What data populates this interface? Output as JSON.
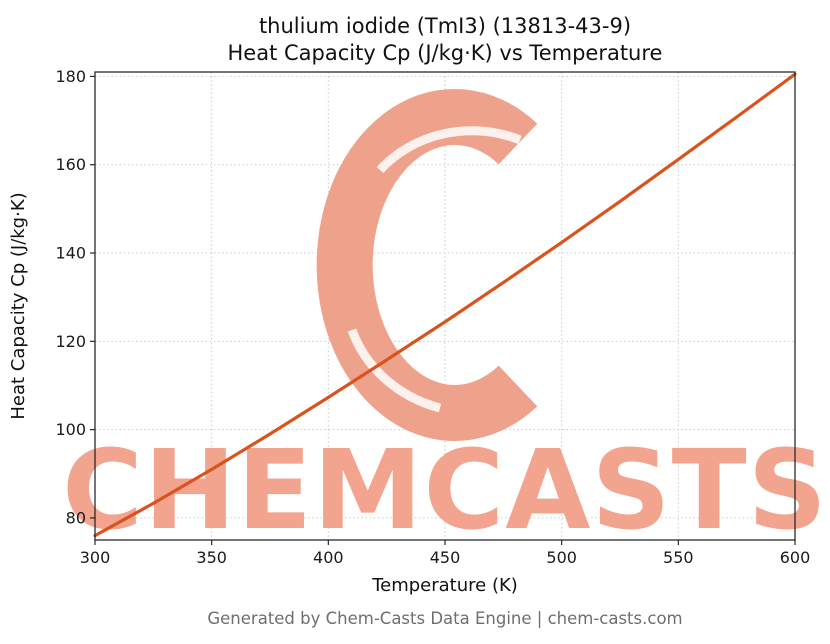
{
  "watermark": {
    "text": "CHEMCASTS",
    "color": "#f2a48e"
  },
  "footer": {
    "text": "Generated by Chem-Casts Data Engine | chem-casts.com"
  },
  "colors": {
    "line": "#d9531c",
    "grid": "#c9c9c9",
    "spine": "#2a2a2a",
    "watermark": "#f2a48e",
    "footer_text": "#6e6e6e"
  },
  "chart_data": {
    "type": "line",
    "title": "thulium iodide (TmI3) (13813-43-9)\nHeat Capacity Cp (J/kg·K) vs Temperature",
    "title_lines": [
      "thulium iodide (TmI3) (13813-43-9)",
      "Heat Capacity Cp (J/kg·K) vs Temperature"
    ],
    "xlabel": "Temperature (K)",
    "ylabel": "Heat Capacity Cp (J/kg·K)",
    "xlim": [
      300,
      600
    ],
    "ylim": [
      75,
      181
    ],
    "xticks": [
      300,
      350,
      400,
      450,
      500,
      550,
      600
    ],
    "yticks": [
      80,
      100,
      120,
      140,
      160,
      180
    ],
    "grid": true,
    "legend": false,
    "series": [
      {
        "name": "heat-capacity-cp",
        "color": "#d9531c",
        "x": [
          300,
          325,
          350,
          375,
          400,
          425,
          450,
          475,
          500,
          525,
          550,
          575,
          600
        ],
        "y": [
          76.0,
          83.3,
          91.0,
          99.0,
          107.3,
          115.8,
          124.4,
          133.3,
          142.4,
          151.7,
          161.2,
          170.8,
          180.5
        ]
      }
    ]
  }
}
